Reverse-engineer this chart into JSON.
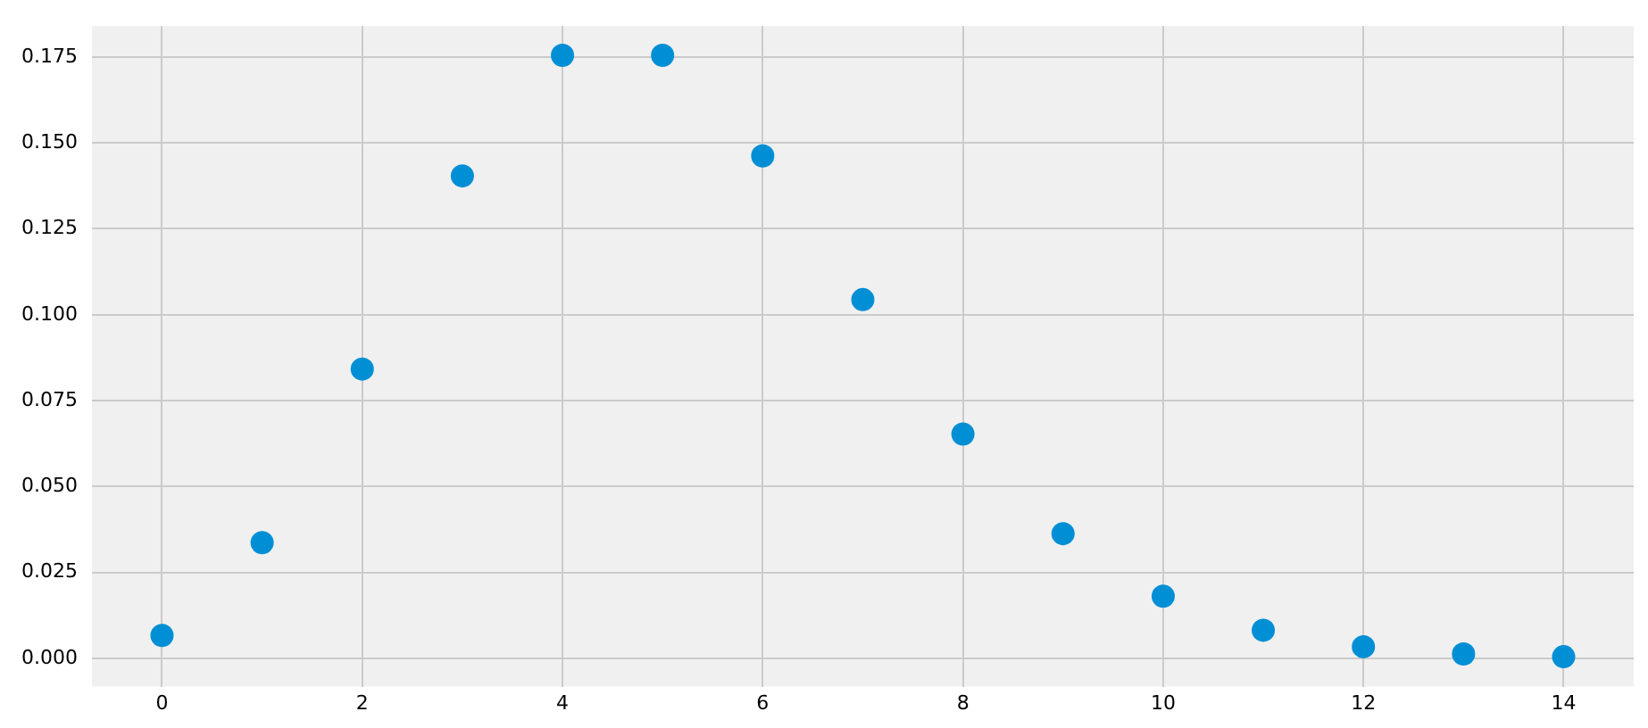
{
  "chart_data": {
    "type": "scatter",
    "x": [
      0,
      1,
      2,
      3,
      4,
      5,
      6,
      7,
      8,
      9,
      10,
      11,
      12,
      13,
      14
    ],
    "series": [
      {
        "color": "#008fd5",
        "values": [
          0.0067,
          0.0337,
          0.0842,
          0.1404,
          0.1755,
          0.1755,
          0.1462,
          0.1044,
          0.0653,
          0.0363,
          0.0181,
          0.0082,
          0.0034,
          0.0013,
          0.0005
        ]
      }
    ],
    "xlim": [
      -0.7,
      14.7
    ],
    "xticks": [
      0,
      2,
      4,
      6,
      8,
      10,
      12,
      14
    ],
    "ylim": [
      -0.0082,
      0.184
    ],
    "yticks": [
      {
        "value": 0,
        "label": "0.000"
      },
      {
        "value": 0.025,
        "label": "0.025"
      },
      {
        "value": 0.05,
        "label": "0.050"
      },
      {
        "value": 0.075,
        "label": "0.075"
      },
      {
        "value": 0.1,
        "label": "0.100"
      },
      {
        "value": 0.125,
        "label": "0.125"
      },
      {
        "value": 0.15,
        "label": "0.150"
      },
      {
        "value": 0.175,
        "label": "0.175"
      }
    ],
    "grid": true,
    "legend": false,
    "marker": "circle"
  }
}
